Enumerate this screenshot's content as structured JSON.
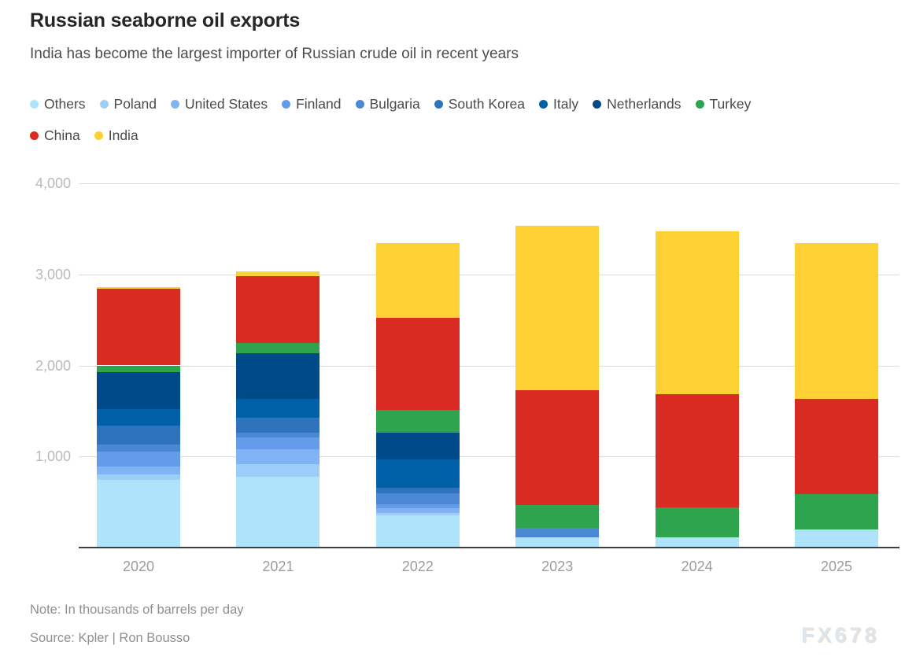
{
  "header": {
    "title": "Russian seaborne oil exports",
    "subtitle": "India has become the largest importer of Russian crude oil in recent years"
  },
  "chart_data": {
    "type": "bar",
    "stacked": true,
    "title": "Russian seaborne oil exports",
    "subtitle": "India has become the largest importer of Russian crude oil in recent years",
    "units": "thousands of barrels per day",
    "categories": [
      "2020",
      "2021",
      "2022",
      "2023",
      "2024",
      "2025"
    ],
    "series": [
      {
        "name": "Others",
        "color": "#afe3fc",
        "values": [
          740,
          780,
          350,
          115,
          115,
          195
        ]
      },
      {
        "name": "Poland",
        "color": "#9dcefa",
        "values": [
          65,
          135,
          30,
          0,
          0,
          0
        ]
      },
      {
        "name": "United States",
        "color": "#7fb3f6",
        "values": [
          85,
          165,
          50,
          0,
          0,
          0
        ]
      },
      {
        "name": "Finland",
        "color": "#659ce9",
        "values": [
          160,
          130,
          45,
          0,
          0,
          0
        ]
      },
      {
        "name": "Bulgaria",
        "color": "#4c87d3",
        "values": [
          80,
          50,
          120,
          105,
          0,
          0
        ]
      },
      {
        "name": "South Korea",
        "color": "#2f73bc",
        "values": [
          210,
          165,
          60,
          0,
          0,
          0
        ]
      },
      {
        "name": "Italy",
        "color": "#0060a8",
        "values": [
          180,
          205,
          310,
          0,
          0,
          0
        ]
      },
      {
        "name": "Netherlands",
        "color": "#004a8a",
        "values": [
          405,
          500,
          300,
          0,
          0,
          0
        ]
      },
      {
        "name": "Turkey",
        "color": "#2ea44f",
        "values": [
          75,
          120,
          245,
          250,
          325,
          395
        ]
      },
      {
        "name": "China",
        "color": "#da2b23",
        "values": [
          840,
          730,
          1010,
          1260,
          1245,
          1045
        ]
      },
      {
        "name": "India",
        "color": "#fdd133",
        "values": [
          20,
          50,
          820,
          1800,
          1785,
          1705
        ]
      }
    ],
    "totals": [
      2860,
      3030,
      3340,
      3530,
      3470,
      3340
    ],
    "ylim": [
      0,
      4000
    ],
    "yticks": [
      1000,
      2000,
      3000,
      4000
    ],
    "ytick_labels": [
      "1,000",
      "2,000",
      "3,000",
      "4,000"
    ],
    "grid": true,
    "legend_position": "top"
  },
  "legend_rows": [
    [
      "Others",
      "Poland",
      "United States",
      "Finland",
      "Bulgaria",
      "South Korea",
      "Italy",
      "Netherlands",
      "Turkey"
    ],
    [
      "China",
      "India"
    ]
  ],
  "footer": {
    "note": "Note: In thousands of barrels per day",
    "source": "Source: Kpler | Ron Bousso",
    "watermark": "FX678"
  }
}
